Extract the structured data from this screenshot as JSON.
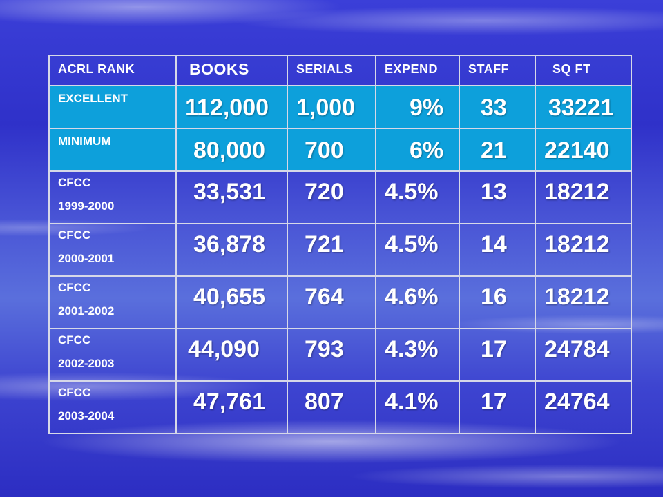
{
  "table": {
    "headers": [
      "ACRL RANK",
      "BOOKS",
      "SERIALS",
      "EXPEND",
      "STAFF",
      "SQ FT"
    ],
    "rows": [
      {
        "label": [
          "EXCELLENT"
        ],
        "books": "112,000",
        "serials": "1,000",
        "expend": "9%",
        "staff": "33",
        "sqft": "33221"
      },
      {
        "label": [
          "MINIMUM"
        ],
        "books": "80,000",
        "serials": "700",
        "expend": "6%",
        "staff": "21",
        "sqft": "22140"
      },
      {
        "label": [
          "CFCC",
          "1999-2000"
        ],
        "books": "33,531",
        "serials": "720",
        "expend": "4.5%",
        "staff": "13",
        "sqft": "18212"
      },
      {
        "label": [
          "CFCC",
          "2000-2001"
        ],
        "books": "36,878",
        "serials": "721",
        "expend": "4.5%",
        "staff": "14",
        "sqft": "18212"
      },
      {
        "label": [
          "CFCC",
          "2001-2002"
        ],
        "books": "40,655",
        "serials": "764",
        "expend": "4.6%",
        "staff": "16",
        "sqft": "18212"
      },
      {
        "label": [
          "CFCC",
          "2002-2003"
        ],
        "books": "44,090",
        "serials": "793",
        "expend": "4.3%",
        "staff": "17",
        "sqft": "24784"
      },
      {
        "label": [
          "CFCC",
          "2003-2004"
        ],
        "books": "47,761",
        "serials": "807",
        "expend": "4.1%",
        "staff": "17",
        "sqft": "24764"
      }
    ]
  },
  "colors": {
    "highlight_row": "#0da0db",
    "border": "#d6d8e8",
    "text": "#ffffff"
  }
}
